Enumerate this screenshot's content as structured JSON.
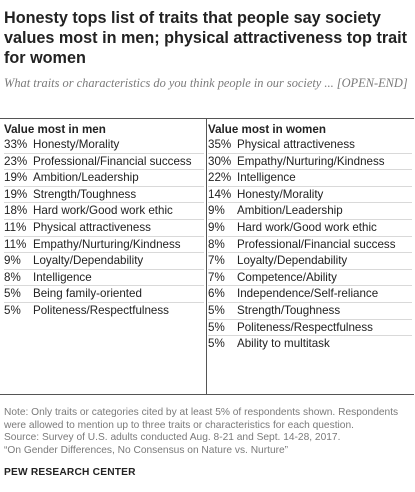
{
  "title": "Honesty tops list of traits that people say society values most in men; physical attractiveness top trait for women",
  "subtitle": "What traits or characteristics do you think people in our society ... [OPEN-END]",
  "chart_data": {
    "type": "table",
    "tables": [
      {
        "header": "Value most in men",
        "rows": [
          {
            "value": "33%",
            "trait": "Honesty/Morality"
          },
          {
            "value": "23%",
            "trait": "Professional/Financial success"
          },
          {
            "value": "19%",
            "trait": "Ambition/Leadership"
          },
          {
            "value": "19%",
            "trait": "Strength/Toughness"
          },
          {
            "value": "18%",
            "trait": "Hard work/Good work ethic"
          },
          {
            "value": "11%",
            "trait": "Physical attractiveness"
          },
          {
            "value": "11%",
            "trait": "Empathy/Nurturing/Kindness"
          },
          {
            "value": "9%",
            "trait": "Loyalty/Dependability"
          },
          {
            "value": "8%",
            "trait": "Intelligence"
          },
          {
            "value": "5%",
            "trait": "Being family-oriented"
          },
          {
            "value": "5%",
            "trait": "Politeness/Respectfulness"
          }
        ]
      },
      {
        "header": "Value most in women",
        "rows": [
          {
            "value": "35%",
            "trait": "Physical attractiveness"
          },
          {
            "value": "30%",
            "trait": "Empathy/Nurturing/Kindness"
          },
          {
            "value": "22%",
            "trait": "Intelligence"
          },
          {
            "value": "14%",
            "trait": "Honesty/Morality"
          },
          {
            "value": "9%",
            "trait": "Ambition/Leadership"
          },
          {
            "value": "9%",
            "trait": "Hard work/Good work ethic"
          },
          {
            "value": "8%",
            "trait": "Professional/Financial success"
          },
          {
            "value": "7%",
            "trait": "Loyalty/Dependability"
          },
          {
            "value": "7%",
            "trait": "Competence/Ability"
          },
          {
            "value": "6%",
            "trait": "Independence/Self-reliance"
          },
          {
            "value": "5%",
            "trait": "Strength/Toughness"
          },
          {
            "value": "5%",
            "trait": "Politeness/Respectfulness"
          },
          {
            "value": "5%",
            "trait": "Ability to multitask"
          }
        ]
      }
    ]
  },
  "notes": {
    "line1": "Note: Only traits or categories cited by at least 5% of respondents shown. Respondents",
    "line2": "were allowed to mention up to three traits or characteristics for each question.",
    "line3": "Source: Survey of U.S. adults conducted Aug. 8-21 and Sept. 14-28, 2017.",
    "line4": "“On Gender Differences, No Consensus on Nature vs. Nurture”"
  },
  "brand": "PEW RESEARCH CENTER",
  "colors": {
    "text": "#222222",
    "muted": "#7a7a7a",
    "rule": "#555555",
    "row_rule": "#d9d9d9"
  }
}
